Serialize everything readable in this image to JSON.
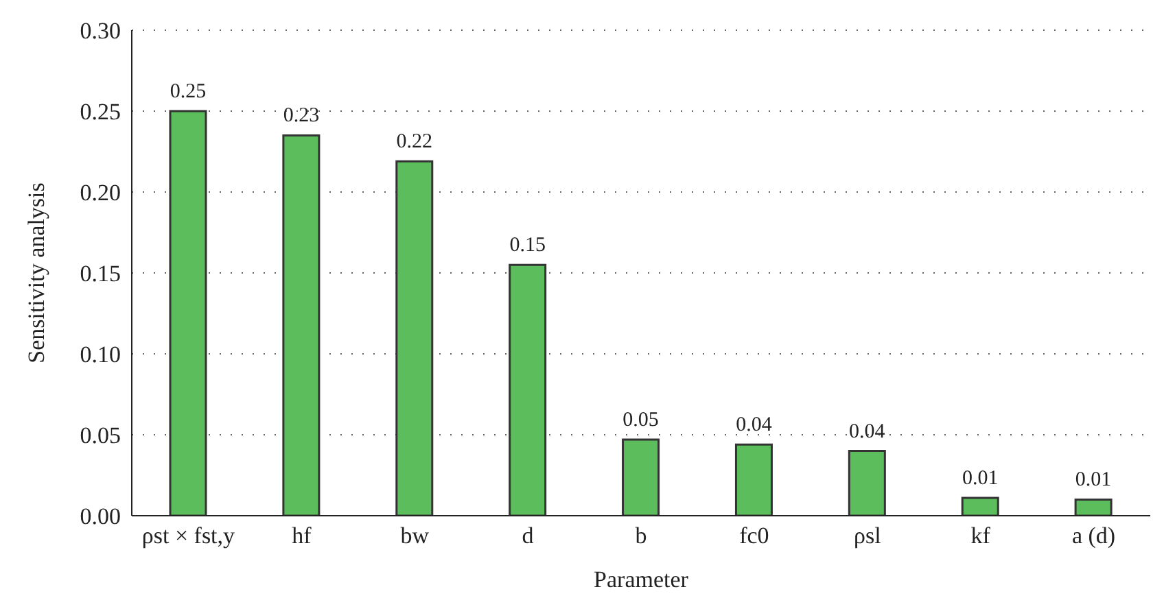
{
  "chart_data": {
    "type": "bar",
    "xlabel": "Parameter",
    "ylabel": "Sensitivity analysis",
    "categories": [
      "ρst × fst,y",
      "hf",
      "bw",
      "d",
      "b",
      "fc0",
      "ρsl",
      "kf",
      "a (d)"
    ],
    "values": [
      0.25,
      0.235,
      0.219,
      0.155,
      0.047,
      0.044,
      0.04,
      0.011,
      0.01
    ],
    "value_labels": [
      "0.25",
      "0.23",
      "0.22",
      "0.15",
      "0.05",
      "0.04",
      "0.04",
      "0.01",
      "0.01"
    ],
    "color": "#5cbd5c",
    "ylim": [
      0,
      0.3
    ],
    "yticks": [
      "0.00",
      "0.05",
      "0.10",
      "0.15",
      "0.20",
      "0.25",
      "0.30"
    ],
    "grid": "y"
  }
}
